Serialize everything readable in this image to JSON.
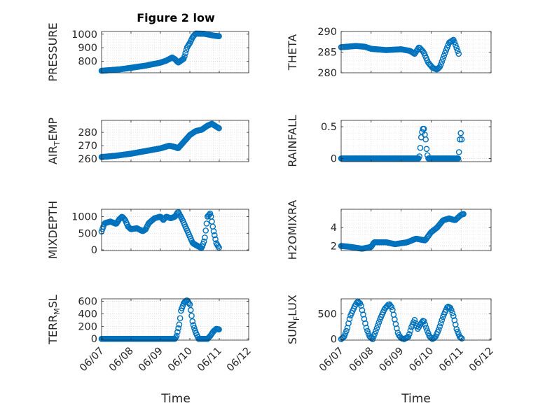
{
  "colors": {
    "marker": "#0072BD",
    "axis": "#262626"
  },
  "figure": {
    "title": "Figure 2 low",
    "xlabel": "Time"
  },
  "chart_data": [
    {
      "type": "scatter",
      "id": "pressure",
      "ylabel": "PRESSURE",
      "grid": true,
      "xlim": [
        0,
        5
      ],
      "ylim": [
        715,
        1020
      ],
      "xticks": [
        0,
        1,
        2,
        3,
        4,
        5
      ],
      "yticks": [
        800,
        900,
        1000
      ],
      "yticklabels": [
        "800",
        "900",
        "1000"
      ],
      "knots": [
        [
          0,
          730
        ],
        [
          0.3,
          735
        ],
        [
          0.6,
          740
        ],
        [
          1,
          752
        ],
        [
          1.5,
          768
        ],
        [
          2,
          790
        ],
        [
          2.2,
          805
        ],
        [
          2.4,
          828
        ],
        [
          2.5,
          815
        ],
        [
          2.6,
          790
        ],
        [
          2.8,
          820
        ],
        [
          2.9,
          900
        ],
        [
          3.0,
          935
        ],
        [
          3.1,
          980
        ],
        [
          3.2,
          1005
        ],
        [
          3.5,
          1003
        ],
        [
          3.8,
          990
        ],
        [
          4.0,
          985
        ]
      ],
      "step": 0.03
    },
    {
      "type": "scatter",
      "id": "theta",
      "ylabel": "THETA",
      "grid": true,
      "xlim": [
        0,
        5
      ],
      "ylim": [
        280,
        290
      ],
      "xticks": [
        0,
        1,
        2,
        3,
        4,
        5
      ],
      "yticks": [
        280,
        285,
        290
      ],
      "yticklabels": [
        "280",
        "285",
        "290"
      ],
      "knots": [
        [
          0,
          286.2
        ],
        [
          0.5,
          286.5
        ],
        [
          0.8,
          286.3
        ],
        [
          1,
          285.8
        ],
        [
          1.5,
          285.5
        ],
        [
          2,
          285.7
        ],
        [
          2.3,
          285.3
        ],
        [
          2.45,
          284.6
        ],
        [
          2.6,
          286.2
        ],
        [
          2.75,
          285.0
        ],
        [
          2.9,
          282.5
        ],
        [
          3.05,
          281.2
        ],
        [
          3.2,
          280.8
        ],
        [
          3.3,
          281.5
        ],
        [
          3.45,
          284.5
        ],
        [
          3.6,
          287.3
        ],
        [
          3.75,
          288.0
        ],
        [
          3.85,
          286.0
        ],
        [
          3.95,
          284.0
        ]
      ],
      "step": 0.035
    },
    {
      "type": "scatter",
      "id": "air_temp",
      "ylabel": "AIR_TEMP",
      "grid": true,
      "xlim": [
        0,
        5
      ],
      "ylim": [
        258,
        289
      ],
      "xticks": [
        0,
        1,
        2,
        3,
        4,
        5
      ],
      "yticks": [
        260,
        270,
        280
      ],
      "yticklabels": [
        "260",
        "270",
        "280"
      ],
      "knots": [
        [
          0,
          261.5
        ],
        [
          0.5,
          262.5
        ],
        [
          1,
          264
        ],
        [
          1.5,
          266
        ],
        [
          2,
          268
        ],
        [
          2.3,
          270
        ],
        [
          2.5,
          269
        ],
        [
          2.6,
          268
        ],
        [
          2.8,
          273
        ],
        [
          3.0,
          278
        ],
        [
          3.2,
          281
        ],
        [
          3.4,
          282
        ],
        [
          3.6,
          285
        ],
        [
          3.75,
          286.5
        ],
        [
          3.85,
          285
        ],
        [
          4.0,
          283
        ]
      ],
      "step": 0.03
    },
    {
      "type": "scatter",
      "id": "rainfall",
      "ylabel": "RAINFALL",
      "grid": true,
      "xlim": [
        0,
        5
      ],
      "ylim": [
        -0.05,
        0.6
      ],
      "xticks": [
        0,
        1,
        2,
        3,
        4,
        5
      ],
      "yticks": [
        0,
        0.5
      ],
      "yticklabels": [
        "0",
        "0.5"
      ],
      "knots": [
        [
          0,
          0
        ],
        [
          2.6,
          0
        ],
        [
          2.63,
          0.1
        ],
        [
          2.66,
          0.3
        ],
        [
          2.69,
          0.4
        ],
        [
          2.72,
          0.45
        ],
        [
          2.75,
          0.5
        ],
        [
          2.78,
          0.4
        ],
        [
          2.82,
          0.3
        ],
        [
          2.86,
          0.1
        ],
        [
          2.9,
          0
        ],
        [
          3.9,
          0
        ],
        [
          3.93,
          0.1
        ],
        [
          3.96,
          0.3
        ],
        [
          3.99,
          0.4
        ],
        [
          4.02,
          0.3
        ],
        [
          4.04,
          0.25
        ]
      ],
      "step": 0.03
    },
    {
      "type": "scatter",
      "id": "mixdepth",
      "ylabel": "MIXDEPTH",
      "grid": true,
      "xlim": [
        0,
        5
      ],
      "ylim": [
        -20,
        1220
      ],
      "xticks": [
        0,
        1,
        2,
        3,
        4,
        5
      ],
      "yticks": [
        0,
        500,
        1000
      ],
      "yticklabels": [
        "0",
        "500",
        "1000"
      ],
      "knots": [
        [
          0,
          550
        ],
        [
          0.1,
          800
        ],
        [
          0.3,
          850
        ],
        [
          0.5,
          780
        ],
        [
          0.6,
          920
        ],
        [
          0.7,
          1000
        ],
        [
          0.8,
          900
        ],
        [
          0.9,
          700
        ],
        [
          1.0,
          620
        ],
        [
          1.2,
          650
        ],
        [
          1.4,
          560
        ],
        [
          1.5,
          620
        ],
        [
          1.6,
          800
        ],
        [
          1.8,
          950
        ],
        [
          2.0,
          1000
        ],
        [
          2.1,
          900
        ],
        [
          2.2,
          1000
        ],
        [
          2.35,
          950
        ],
        [
          2.5,
          1000
        ],
        [
          2.6,
          1150
        ],
        [
          2.75,
          900
        ],
        [
          2.9,
          600
        ],
        [
          3.0,
          400
        ],
        [
          3.1,
          200
        ],
        [
          3.2,
          150
        ],
        [
          3.3,
          100
        ],
        [
          3.4,
          50
        ],
        [
          3.5,
          300
        ],
        [
          3.6,
          1000
        ],
        [
          3.7,
          1100
        ],
        [
          3.8,
          600
        ],
        [
          3.9,
          200
        ],
        [
          4.0,
          50
        ]
      ],
      "step": 0.03
    },
    {
      "type": "scatter",
      "id": "h2omixra",
      "ylabel": "H2OMIXRA",
      "grid": true,
      "xlim": [
        0,
        5
      ],
      "ylim": [
        1.5,
        6.0
      ],
      "xticks": [
        0,
        1,
        2,
        3,
        4,
        5
      ],
      "yticks": [
        2,
        4
      ],
      "yticklabels": [
        "2",
        "4"
      ],
      "knots": [
        [
          0,
          2.0
        ],
        [
          0.3,
          1.9
        ],
        [
          0.7,
          1.7
        ],
        [
          1.0,
          1.9
        ],
        [
          1.1,
          2.4
        ],
        [
          1.5,
          2.4
        ],
        [
          1.8,
          2.2
        ],
        [
          2.2,
          2.4
        ],
        [
          2.5,
          2.8
        ],
        [
          2.8,
          2.6
        ],
        [
          3.0,
          3.5
        ],
        [
          3.2,
          4.0
        ],
        [
          3.4,
          4.8
        ],
        [
          3.6,
          5.0
        ],
        [
          3.8,
          4.8
        ],
        [
          4.0,
          5.4
        ],
        [
          4.1,
          5.5
        ]
      ],
      "step": 0.03
    },
    {
      "type": "scatter",
      "id": "terr_msl",
      "ylabel": "TERR_MSL",
      "grid": true,
      "xlim": [
        0,
        5
      ],
      "ylim": [
        -20,
        640
      ],
      "xticks": [
        0,
        1,
        2,
        3,
        4,
        5
      ],
      "yticks": [
        0,
        200,
        400,
        600
      ],
      "yticklabels": [
        "0",
        "200",
        "400",
        "600"
      ],
      "knots": [
        [
          0,
          0
        ],
        [
          2.5,
          0
        ],
        [
          2.55,
          50
        ],
        [
          2.65,
          250
        ],
        [
          2.7,
          450
        ],
        [
          2.8,
          580
        ],
        [
          2.9,
          620
        ],
        [
          3.0,
          550
        ],
        [
          3.05,
          400
        ],
        [
          3.1,
          250
        ],
        [
          3.2,
          100
        ],
        [
          3.3,
          0
        ],
        [
          3.6,
          0
        ],
        [
          3.7,
          50
        ],
        [
          3.8,
          120
        ],
        [
          3.9,
          160
        ],
        [
          4.0,
          150
        ]
      ],
      "step": 0.03
    },
    {
      "type": "scatter",
      "id": "sun_flux",
      "ylabel": "SUN_FLUX",
      "grid": true,
      "xlim": [
        0,
        5
      ],
      "ylim": [
        -20,
        800
      ],
      "xticks": [
        0,
        1,
        2,
        3,
        4,
        5
      ],
      "yticks": [
        0,
        500
      ],
      "yticklabels": [
        "0",
        "500"
      ],
      "knots": [
        [
          0,
          0
        ],
        [
          0.1,
          50
        ],
        [
          0.2,
          200
        ],
        [
          0.3,
          450
        ],
        [
          0.45,
          650
        ],
        [
          0.55,
          750
        ],
        [
          0.65,
          700
        ],
        [
          0.75,
          450
        ],
        [
          0.85,
          200
        ],
        [
          0.95,
          50
        ],
        [
          1.05,
          0
        ],
        [
          1.15,
          150
        ],
        [
          1.3,
          400
        ],
        [
          1.45,
          600
        ],
        [
          1.6,
          700
        ],
        [
          1.7,
          620
        ],
        [
          1.8,
          350
        ],
        [
          1.9,
          100
        ],
        [
          2.0,
          20
        ],
        [
          2.1,
          0
        ],
        [
          2.25,
          50
        ],
        [
          2.35,
          250
        ],
        [
          2.45,
          380
        ],
        [
          2.55,
          200
        ],
        [
          2.65,
          300
        ],
        [
          2.75,
          380
        ],
        [
          2.85,
          200
        ],
        [
          2.95,
          50
        ],
        [
          3.05,
          0
        ],
        [
          3.15,
          50
        ],
        [
          3.25,
          180
        ],
        [
          3.4,
          450
        ],
        [
          3.55,
          650
        ],
        [
          3.65,
          620
        ],
        [
          3.75,
          450
        ],
        [
          3.85,
          200
        ],
        [
          3.95,
          50
        ],
        [
          4.05,
          0
        ]
      ],
      "step": 0.035
    }
  ],
  "shared_xticklabels": [
    "06/07",
    "06/08",
    "06/09",
    "06/10",
    "06/11",
    "06/12"
  ]
}
